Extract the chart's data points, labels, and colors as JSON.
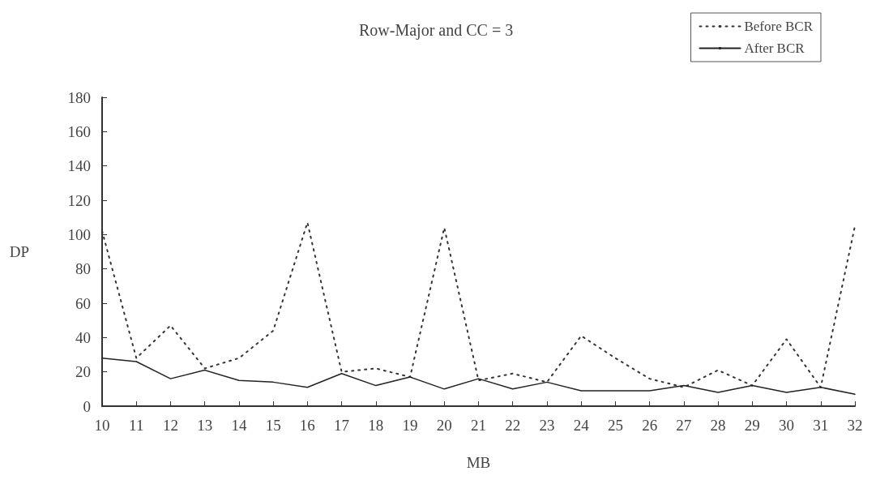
{
  "chart_data": {
    "type": "line",
    "title": "Row-Major and CC = 3",
    "xlabel": "MB",
    "ylabel": "DP",
    "categories": [
      "10",
      "11",
      "12",
      "13",
      "14",
      "15",
      "16",
      "17",
      "18",
      "19",
      "20",
      "21",
      "22",
      "23",
      "24",
      "25",
      "26",
      "27",
      "28",
      "29",
      "30",
      "31",
      "32"
    ],
    "series": [
      {
        "name": "Before BCR",
        "color": "#333333",
        "line_style": "dotted",
        "values": [
          102,
          28,
          47,
          22,
          28,
          44,
          107,
          20,
          22,
          17,
          104,
          15,
          19,
          14,
          41,
          28,
          16,
          11,
          21,
          12,
          39,
          11,
          105
        ]
      },
      {
        "name": "After BCR",
        "color": "#222222",
        "line_style": "solid",
        "values": [
          28,
          26,
          16,
          21,
          15,
          14,
          11,
          19,
          12,
          17,
          10,
          16,
          10,
          14,
          9,
          9,
          9,
          12,
          8,
          12,
          8,
          11,
          7
        ]
      }
    ],
    "ylim": [
      0,
      180
    ],
    "yticks": [
      0,
      20,
      40,
      60,
      80,
      100,
      120,
      140,
      160,
      180
    ],
    "grid": false,
    "legend": "top right",
    "marker": "none"
  }
}
